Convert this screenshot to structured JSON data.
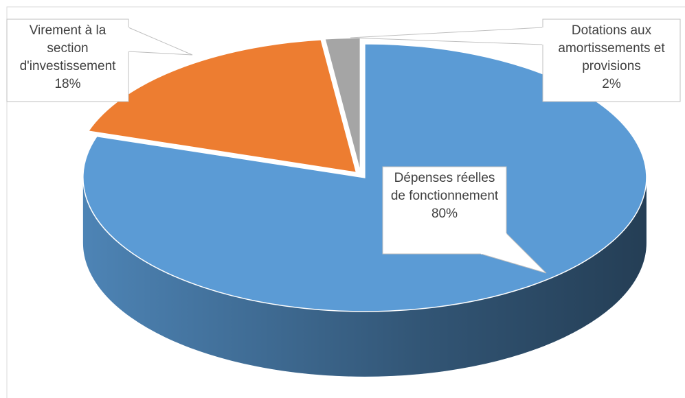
{
  "chart_data": {
    "type": "pie",
    "categories": [
      "Dépenses réelles de fonctionnement",
      "Virement à la section d'investissement",
      "Dotations aux amortissements et provisions"
    ],
    "values": [
      80,
      18,
      2
    ],
    "value_labels": [
      "80%",
      "18%",
      "2%"
    ],
    "colors": [
      "#5b9bd5",
      "#ed7d31",
      "#a5a5a5"
    ]
  }
}
